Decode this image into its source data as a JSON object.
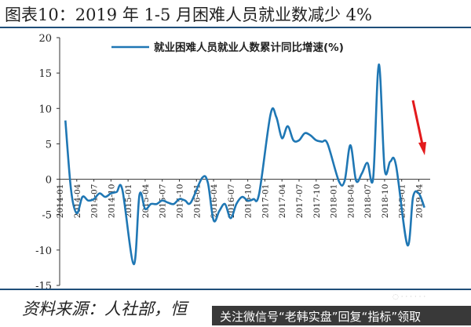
{
  "title": "图表10：2019 年 1-5 月困难人员就业数减少 4%",
  "source": "资料来源：人社部，恒",
  "wechat_banner": "关注微信号“老韩实盘”回复“指标”领取",
  "chart_data": {
    "type": "line",
    "title": "",
    "xlabel": "",
    "ylabel": "",
    "ylim": [
      -15,
      20
    ],
    "yticks": [
      -15,
      -10,
      -5,
      0,
      5,
      10,
      15,
      20
    ],
    "grid": false,
    "legend_position": "top",
    "line_color": "#1f77b4",
    "arrow_color": "#e31a1c",
    "categories": [
      "2014-01",
      "2014-04",
      "2014-07",
      "2014-10",
      "2015-01",
      "2015-04",
      "2015-07",
      "2015-10",
      "2016-01",
      "2016-04",
      "2016-07",
      "2016-10",
      "2017-01",
      "2017-04",
      "2017-07",
      "2017-10",
      "2018-01",
      "2018-04",
      "2018-07",
      "2018-10",
      "2019-01",
      "2019-04"
    ],
    "series": [
      {
        "name": "就业困难人员就业人数累计同比增速(%)",
        "x": [
          "2014-02",
          "2014-03",
          "2014-04",
          "2014-05",
          "2014-06",
          "2014-07",
          "2014-08",
          "2014-09",
          "2014-10",
          "2014-11",
          "2014-12",
          "2015-02",
          "2015-03",
          "2015-04",
          "2015-05",
          "2015-06",
          "2015-07",
          "2015-08",
          "2015-09",
          "2015-10",
          "2015-11",
          "2015-12",
          "2016-02",
          "2016-03",
          "2016-04",
          "2016-05",
          "2016-06",
          "2016-07",
          "2016-08",
          "2016-09",
          "2016-10",
          "2016-11",
          "2016-12",
          "2017-02",
          "2017-03",
          "2017-04",
          "2017-05",
          "2017-06",
          "2017-07",
          "2017-08",
          "2017-09",
          "2017-10",
          "2017-11",
          "2017-12",
          "2018-02",
          "2018-03",
          "2018-04",
          "2018-05",
          "2018-06",
          "2018-07",
          "2018-08",
          "2018-09",
          "2018-10",
          "2018-11",
          "2018-12",
          "2019-02",
          "2019-03",
          "2019-04",
          "2019-05"
        ],
        "values": [
          8.3,
          -1.5,
          -4.8,
          -2.5,
          -3.0,
          -2.8,
          -2.0,
          -2.5,
          -2.0,
          -1.8,
          -1.5,
          -12.0,
          -2.2,
          -4.2,
          -3.5,
          -3.5,
          -3.0,
          -3.3,
          -3.5,
          -2.8,
          -3.0,
          -3.3,
          0.2,
          -0.5,
          -5.8,
          -4.5,
          -3.5,
          -5.5,
          -3.5,
          -2.5,
          -3.0,
          -2.8,
          -2.0,
          9.2,
          8.8,
          5.8,
          7.5,
          5.5,
          5.5,
          6.5,
          6.2,
          5.5,
          5.3,
          5.0,
          -0.3,
          -0.2,
          4.8,
          -0.2,
          0.8,
          2.3,
          0.2,
          16.2,
          1.5,
          2.5,
          2.0,
          -9.3,
          -2.5,
          -2.0,
          -4.0
        ]
      }
    ]
  }
}
